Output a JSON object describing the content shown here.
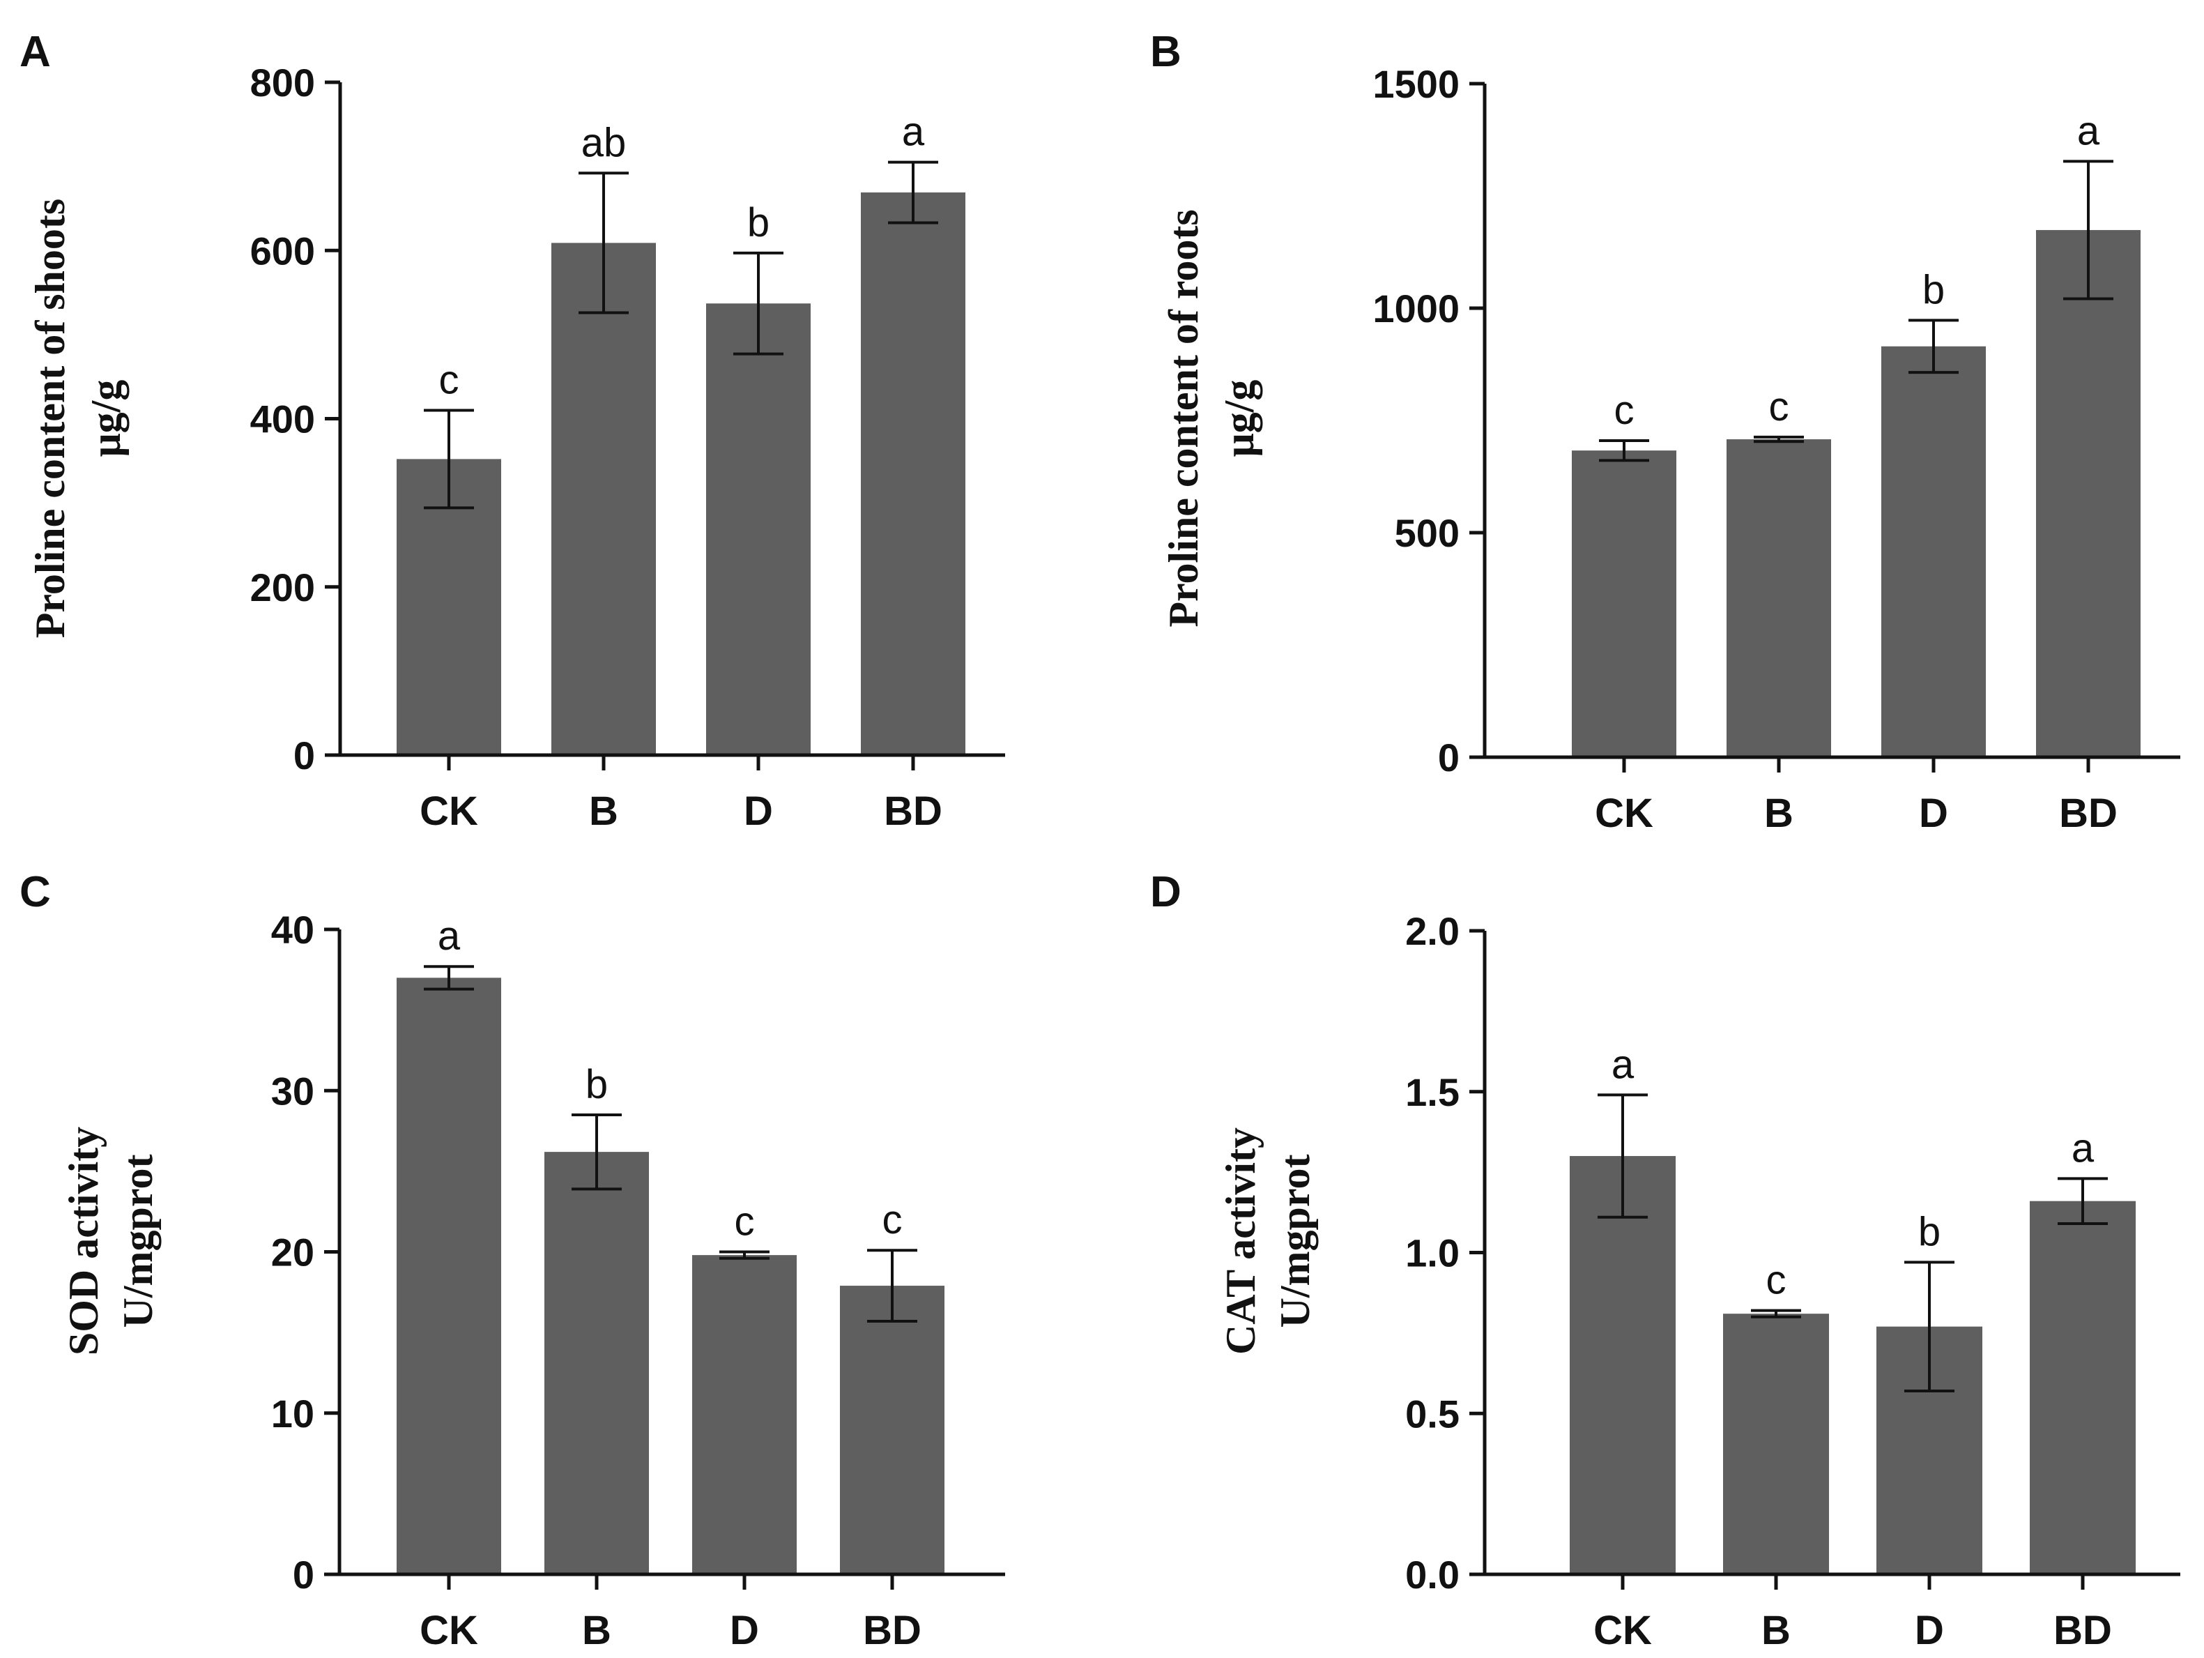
{
  "figure": {
    "bar_color": "#5f5f5f",
    "axis_color": "#111111"
  },
  "chart_data": [
    {
      "type": "bar",
      "panel": "A",
      "title": "",
      "ylabel": "Proline content of shoots",
      "yunit": "μg/g",
      "xlabel": "",
      "categories": [
        "CK",
        "B",
        "D",
        "BD"
      ],
      "values": [
        352,
        609,
        537,
        669
      ],
      "errors": [
        58,
        83,
        60,
        36
      ],
      "significance": [
        "c",
        "ab",
        "b",
        "a"
      ],
      "ylim": [
        0,
        800
      ],
      "yticks": [
        0,
        200,
        400,
        600,
        800
      ],
      "ytick_labels": [
        "0",
        "200",
        "400",
        "600",
        "800"
      ],
      "grid": false
    },
    {
      "type": "bar",
      "panel": "B",
      "title": "",
      "ylabel": "Proline content of roots",
      "yunit": "μg/g",
      "xlabel": "",
      "categories": [
        "CK",
        "B",
        "D",
        "BD"
      ],
      "values": [
        683,
        708,
        915,
        1174
      ],
      "errors": [
        22,
        5,
        58,
        153
      ],
      "significance": [
        "c",
        "c",
        "b",
        "a"
      ],
      "ylim": [
        0,
        1500
      ],
      "yticks": [
        0,
        500,
        1000,
        1500
      ],
      "ytick_labels": [
        "0",
        "500",
        "1000",
        "1500"
      ],
      "grid": false
    },
    {
      "type": "bar",
      "panel": "C",
      "title": "",
      "ylabel": "SOD activity",
      "yunit": "U/mgprot",
      "xlabel": "",
      "categories": [
        "CK",
        "B",
        "D",
        "BD"
      ],
      "values": [
        37.0,
        26.2,
        19.8,
        17.9
      ],
      "errors": [
        0.7,
        2.3,
        0.2,
        2.2
      ],
      "significance": [
        "a",
        "b",
        "c",
        "c"
      ],
      "ylim": [
        0,
        40
      ],
      "yticks": [
        0,
        10,
        20,
        30,
        40
      ],
      "ytick_labels": [
        "0",
        "10",
        "20",
        "30",
        "40"
      ],
      "grid": false
    },
    {
      "type": "bar",
      "panel": "D",
      "title": "",
      "ylabel": "CAT activity",
      "yunit": "U/mgprot",
      "xlabel": "",
      "categories": [
        "CK",
        "B",
        "D",
        "BD"
      ],
      "values": [
        1.3,
        0.81,
        0.77,
        1.16
      ],
      "errors": [
        0.19,
        0.01,
        0.2,
        0.07
      ],
      "significance": [
        "a",
        "c",
        "b",
        "a"
      ],
      "ylim": [
        0,
        2.0
      ],
      "yticks": [
        0,
        0.5,
        1.0,
        1.5,
        2.0
      ],
      "ytick_labels": [
        "0.0",
        "0.5",
        "1.0",
        "1.5",
        "2.0"
      ],
      "grid": false
    }
  ]
}
